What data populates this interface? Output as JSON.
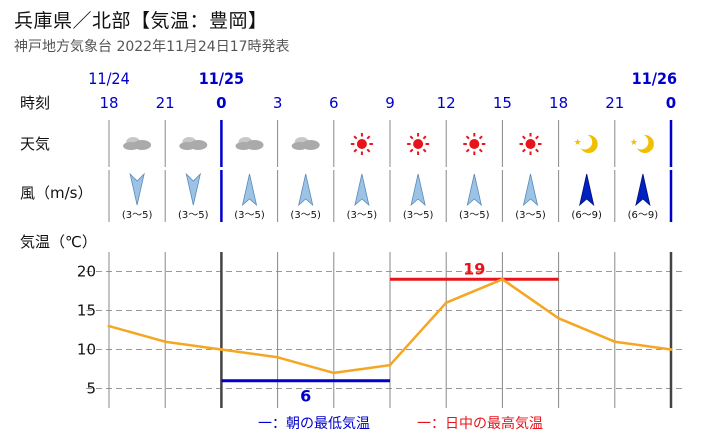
{
  "header": {
    "title": "兵庫県／北部【気温：豊岡】",
    "subtitle": "神戸地方気象台 2022年11月24日17時発表"
  },
  "rows": {
    "time_label": "時刻",
    "weather_label": "天気",
    "wind_label": "風（m/s）",
    "temp_label": "気温（℃）"
  },
  "dates": [
    {
      "label": "11/24",
      "col": 0,
      "bold": false
    },
    {
      "label": "11/25",
      "col": 2,
      "bold": true
    },
    {
      "label": "11/26",
      "col": 10,
      "bold": true
    }
  ],
  "hours": [
    "18",
    "21",
    "0",
    "3",
    "6",
    "9",
    "12",
    "15",
    "18",
    "21",
    "0"
  ],
  "weather": [
    "cloudy",
    "cloudy",
    "cloudy",
    "cloudy",
    "sunny",
    "sunny",
    "sunny",
    "sunny",
    "clear-night",
    "clear-night"
  ],
  "wind": [
    {
      "dir": "N",
      "range": "(3～5)",
      "strong": false
    },
    {
      "dir": "N",
      "range": "(3～5)",
      "strong": false
    },
    {
      "dir": "S",
      "range": "(3～5)",
      "strong": false
    },
    {
      "dir": "S",
      "range": "(3～5)",
      "strong": false
    },
    {
      "dir": "S",
      "range": "(3～5)",
      "strong": false
    },
    {
      "dir": "S",
      "range": "(3～5)",
      "strong": false
    },
    {
      "dir": "S",
      "range": "(3～5)",
      "strong": false
    },
    {
      "dir": "S",
      "range": "(3～5)",
      "strong": false
    },
    {
      "dir": "S",
      "range": "(6～9)",
      "strong": true
    },
    {
      "dir": "S",
      "range": "(6～9)",
      "strong": true
    }
  ],
  "legend": {
    "min_label": "一：朝の最低気温",
    "max_label": "一：日中の最高気温"
  },
  "colors": {
    "temp_line": "#f5a623",
    "min_bar": "#0000cc",
    "max_bar": "#e8141c",
    "sun": "#e8141c",
    "moon": "#f0c000",
    "wind_light": "#9cc3e6",
    "wind_strong": "#0020c0",
    "cloud": "#aaaaaa"
  },
  "chart_data": {
    "type": "line",
    "x": [
      "18",
      "21",
      "0",
      "3",
      "6",
      "9",
      "12",
      "15",
      "18",
      "21",
      "0"
    ],
    "series": [
      {
        "values": [
          13,
          11,
          10,
          9,
          7,
          8,
          16,
          19,
          14,
          11,
          10
        ]
      }
    ],
    "ylim": [
      2.5,
      22.5
    ],
    "yticks": [
      5,
      10,
      15,
      20
    ],
    "grid": true,
    "min_temp": {
      "value": 6,
      "label": "6",
      "from": "0",
      "to": "9"
    },
    "max_temp": {
      "value": 19,
      "label": "19",
      "from": "9",
      "to": "18"
    }
  }
}
